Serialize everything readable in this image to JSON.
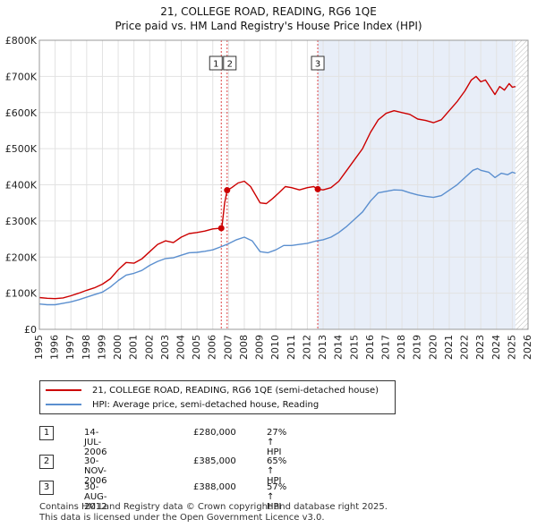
{
  "chart_data": {
    "type": "line",
    "title": "21, COLLEGE ROAD, READING, RG6 1QE",
    "subtitle": "Price paid vs. HM Land Registry's House Price Index (HPI)",
    "ylim": [
      0,
      800000
    ],
    "xlim": [
      1995,
      2026
    ],
    "y_ticks": [
      {
        "value": 0,
        "label": "£0"
      },
      {
        "value": 100000,
        "label": "£100K"
      },
      {
        "value": 200000,
        "label": "£200K"
      },
      {
        "value": 300000,
        "label": "£300K"
      },
      {
        "value": 400000,
        "label": "£400K"
      },
      {
        "value": 500000,
        "label": "£500K"
      },
      {
        "value": 600000,
        "label": "£600K"
      },
      {
        "value": 700000,
        "label": "£700K"
      },
      {
        "value": 800000,
        "label": "£800K"
      }
    ],
    "x_ticks": [
      "1995",
      "1996",
      "1997",
      "1998",
      "1999",
      "2000",
      "2001",
      "2002",
      "2003",
      "2004",
      "2005",
      "2006",
      "2007",
      "2008",
      "2009",
      "2010",
      "2011",
      "2012",
      "2013",
      "2014",
      "2015",
      "2016",
      "2017",
      "2018",
      "2019",
      "2020",
      "2021",
      "2022",
      "2023",
      "2024",
      "2025",
      "2026"
    ],
    "grid": true,
    "shaded_region": {
      "from": 2012.66,
      "to": 2025.2
    },
    "future_hatch": {
      "from": 2025.2,
      "to": 2026
    },
    "series": [
      {
        "name": "21, COLLEGE ROAD, READING, RG6 1QE (semi-detached house)",
        "color": "#cc0000",
        "points": [
          [
            1995,
            88000
          ],
          [
            1995.5,
            86000
          ],
          [
            1996,
            85000
          ],
          [
            1996.5,
            87000
          ],
          [
            1997,
            93000
          ],
          [
            1997.5,
            100000
          ],
          [
            1998,
            108000
          ],
          [
            1998.5,
            115000
          ],
          [
            1999,
            125000
          ],
          [
            1999.5,
            140000
          ],
          [
            2000,
            165000
          ],
          [
            2000.5,
            185000
          ],
          [
            2001,
            183000
          ],
          [
            2001.5,
            195000
          ],
          [
            2002,
            215000
          ],
          [
            2002.5,
            235000
          ],
          [
            2003,
            245000
          ],
          [
            2003.5,
            240000
          ],
          [
            2004,
            255000
          ],
          [
            2004.5,
            265000
          ],
          [
            2005,
            268000
          ],
          [
            2005.5,
            272000
          ],
          [
            2006,
            278000
          ],
          [
            2006.54,
            280000
          ],
          [
            2006.6,
            290000
          ],
          [
            2006.75,
            350000
          ],
          [
            2006.91,
            385000
          ],
          [
            2007.2,
            392000
          ],
          [
            2007.6,
            405000
          ],
          [
            2008,
            410000
          ],
          [
            2008.4,
            395000
          ],
          [
            2008.8,
            365000
          ],
          [
            2009,
            350000
          ],
          [
            2009.4,
            348000
          ],
          [
            2009.8,
            362000
          ],
          [
            2010.2,
            378000
          ],
          [
            2010.6,
            395000
          ],
          [
            2011,
            392000
          ],
          [
            2011.5,
            386000
          ],
          [
            2012,
            392000
          ],
          [
            2012.4,
            395000
          ],
          [
            2012.66,
            388000
          ],
          [
            2013,
            386000
          ],
          [
            2013.5,
            392000
          ],
          [
            2014,
            410000
          ],
          [
            2014.5,
            440000
          ],
          [
            2015,
            470000
          ],
          [
            2015.5,
            500000
          ],
          [
            2016,
            545000
          ],
          [
            2016.5,
            580000
          ],
          [
            2017,
            598000
          ],
          [
            2017.5,
            605000
          ],
          [
            2018,
            600000
          ],
          [
            2018.5,
            595000
          ],
          [
            2019,
            582000
          ],
          [
            2019.5,
            578000
          ],
          [
            2020,
            572000
          ],
          [
            2020.5,
            580000
          ],
          [
            2021,
            605000
          ],
          [
            2021.5,
            630000
          ],
          [
            2022,
            660000
          ],
          [
            2022.4,
            690000
          ],
          [
            2022.7,
            700000
          ],
          [
            2023,
            685000
          ],
          [
            2023.3,
            690000
          ],
          [
            2023.6,
            670000
          ],
          [
            2023.9,
            650000
          ],
          [
            2024.2,
            672000
          ],
          [
            2024.5,
            662000
          ],
          [
            2024.8,
            680000
          ],
          [
            2025,
            670000
          ],
          [
            2025.2,
            672000
          ]
        ]
      },
      {
        "name": "HPI: Average price, semi-detached house, Reading",
        "color": "#5b8fcf",
        "points": [
          [
            1995,
            70000
          ],
          [
            1995.5,
            68000
          ],
          [
            1996,
            68000
          ],
          [
            1996.5,
            72000
          ],
          [
            1997,
            76000
          ],
          [
            1997.5,
            82000
          ],
          [
            1998,
            89000
          ],
          [
            1998.5,
            96000
          ],
          [
            1999,
            103000
          ],
          [
            1999.5,
            117000
          ],
          [
            2000,
            135000
          ],
          [
            2000.5,
            150000
          ],
          [
            2001,
            155000
          ],
          [
            2001.5,
            163000
          ],
          [
            2002,
            177000
          ],
          [
            2002.5,
            188000
          ],
          [
            2003,
            196000
          ],
          [
            2003.5,
            198000
          ],
          [
            2004,
            205000
          ],
          [
            2004.5,
            212000
          ],
          [
            2005,
            213000
          ],
          [
            2005.5,
            216000
          ],
          [
            2006,
            220000
          ],
          [
            2006.5,
            228000
          ],
          [
            2007,
            237000
          ],
          [
            2007.5,
            248000
          ],
          [
            2008,
            255000
          ],
          [
            2008.5,
            245000
          ],
          [
            2009,
            215000
          ],
          [
            2009.5,
            212000
          ],
          [
            2010,
            220000
          ],
          [
            2010.5,
            232000
          ],
          [
            2011,
            232000
          ],
          [
            2011.5,
            235000
          ],
          [
            2012,
            238000
          ],
          [
            2012.5,
            244000
          ],
          [
            2013,
            248000
          ],
          [
            2013.5,
            255000
          ],
          [
            2014,
            268000
          ],
          [
            2014.5,
            285000
          ],
          [
            2015,
            305000
          ],
          [
            2015.5,
            325000
          ],
          [
            2016,
            355000
          ],
          [
            2016.5,
            378000
          ],
          [
            2017,
            382000
          ],
          [
            2017.5,
            386000
          ],
          [
            2018,
            385000
          ],
          [
            2018.5,
            378000
          ],
          [
            2019,
            372000
          ],
          [
            2019.5,
            368000
          ],
          [
            2020,
            365000
          ],
          [
            2020.5,
            370000
          ],
          [
            2021,
            385000
          ],
          [
            2021.5,
            400000
          ],
          [
            2022,
            420000
          ],
          [
            2022.5,
            440000
          ],
          [
            2022.8,
            445000
          ],
          [
            2023,
            440000
          ],
          [
            2023.5,
            435000
          ],
          [
            2023.9,
            420000
          ],
          [
            2024.3,
            432000
          ],
          [
            2024.7,
            428000
          ],
          [
            2025,
            435000
          ],
          [
            2025.2,
            432000
          ]
        ]
      }
    ],
    "markers": [
      {
        "label": "1",
        "x": 2006.54,
        "value": 280000
      },
      {
        "label": "2",
        "x": 2006.91,
        "value": 385000
      },
      {
        "label": "3",
        "x": 2012.66,
        "value": 388000
      }
    ]
  },
  "legend": {
    "entries": [
      {
        "label": "21, COLLEGE ROAD, READING, RG6 1QE (semi-detached house)",
        "color": "#cc0000"
      },
      {
        "label": "HPI: Average price, semi-detached house, Reading",
        "color": "#5b8fcf"
      }
    ]
  },
  "transactions": [
    {
      "num": "1",
      "date": "14-JUL-2006",
      "price": "£280,000",
      "hpi": "27% ↑ HPI"
    },
    {
      "num": "2",
      "date": "30-NOV-2006",
      "price": "£385,000",
      "hpi": "65% ↑ HPI"
    },
    {
      "num": "3",
      "date": "30-AUG-2012",
      "price": "£388,000",
      "hpi": "57% ↑ HPI"
    }
  ],
  "footer": {
    "line1": "Contains HM Land Registry data © Crown copyright and database right 2025.",
    "line2": "This data is licensed under the Open Government Licence v3.0."
  }
}
